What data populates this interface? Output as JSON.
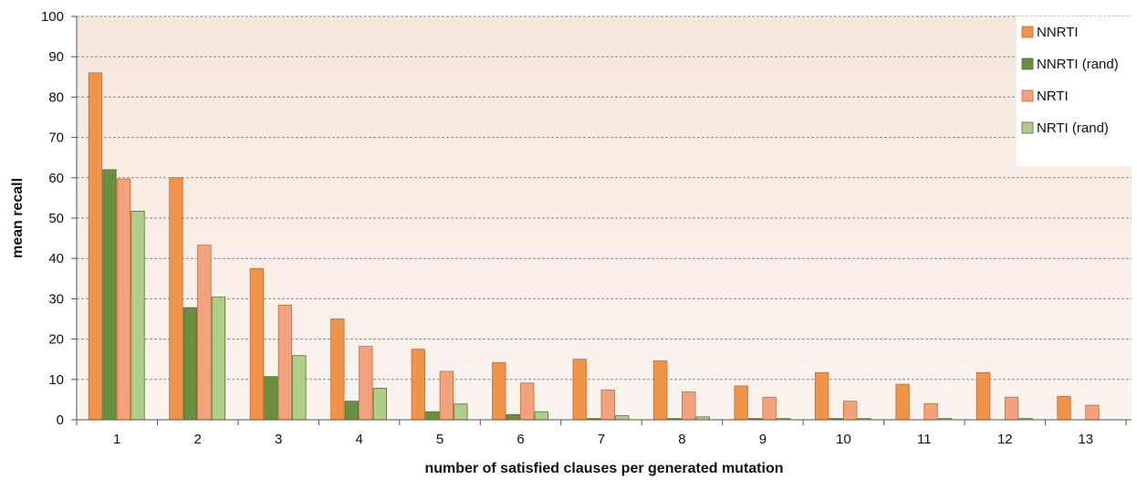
{
  "chart_data": {
    "type": "bar",
    "title": "",
    "xlabel": "number of satisfied clauses per generated mutation",
    "ylabel": "mean recall",
    "ylim": [
      0,
      100
    ],
    "yticks": [
      0,
      10,
      20,
      30,
      40,
      50,
      60,
      70,
      80,
      90,
      100
    ],
    "grid": true,
    "legend_position": "top-right",
    "categories": [
      "1",
      "2",
      "3",
      "4",
      "5",
      "6",
      "7",
      "8",
      "9",
      "10",
      "11",
      "12",
      "13"
    ],
    "series": [
      {
        "name": "NNRTI",
        "color": "#F0934B",
        "values": [
          86,
          60,
          37.5,
          25,
          17.5,
          14.2,
          15,
          14.6,
          8.4,
          11.7,
          8.8,
          11.7,
          5.8
        ]
      },
      {
        "name": "NNRTI (rand)",
        "color": "#6A8F3F",
        "values": [
          62,
          27.8,
          10.7,
          4.6,
          2,
          1.3,
          0.3,
          0.3,
          0.3,
          0.3,
          0,
          0,
          0
        ]
      },
      {
        "name": "NRTI",
        "color": "#F2A27D",
        "values": [
          59.7,
          43.3,
          28.4,
          18.2,
          12,
          9.1,
          7.4,
          6.9,
          5.6,
          4.6,
          4,
          5.6,
          3.6
        ]
      },
      {
        "name": "NRTI (rand)",
        "color": "#AECF8A",
        "values": [
          51.7,
          30.4,
          15.9,
          7.8,
          3.9,
          2,
          1,
          0.7,
          0.3,
          0.3,
          0.3,
          0.3,
          0
        ]
      }
    ]
  }
}
